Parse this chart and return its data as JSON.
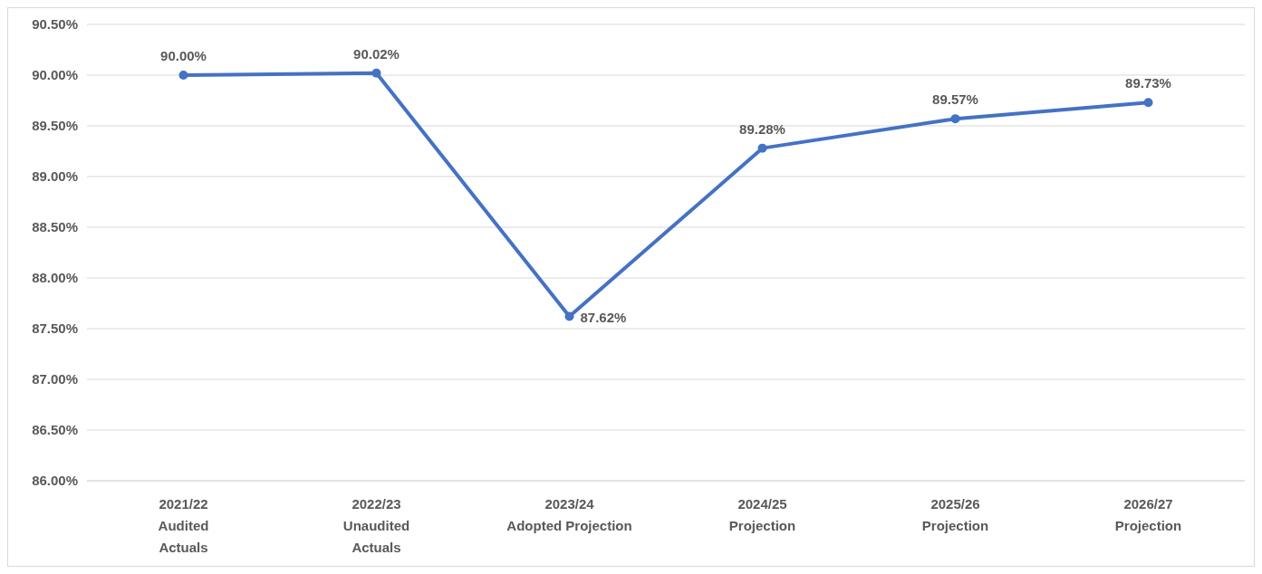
{
  "chart_data": {
    "type": "line",
    "categories": [
      "2021/22\nAudited\nActuals",
      "2022/23\nUnaudited\nActuals",
      "2023/24\nAdopted Projection",
      "2024/25\nProjection",
      "2025/26\nProjection",
      "2026/27\nProjection"
    ],
    "series": [
      {
        "color": "#4472c4",
        "values": [
          90.0,
          90.02,
          87.62,
          89.28,
          89.57,
          89.73
        ],
        "value_labels": [
          "90.00%",
          "90.02%",
          "87.62%",
          "89.28%",
          "89.57%",
          "89.73%"
        ]
      }
    ],
    "ylim": [
      86,
      90.5
    ],
    "yticks": [
      {
        "value": 86,
        "label": "86.00%"
      },
      {
        "value": 86.5,
        "label": "86.50%"
      },
      {
        "value": 87,
        "label": "87.00%"
      },
      {
        "value": 87.5,
        "label": "87.50%"
      },
      {
        "value": 88,
        "label": "88.00%"
      },
      {
        "value": 88.5,
        "label": "88.50%"
      },
      {
        "value": 89,
        "label": "89.00%"
      },
      {
        "value": 89.5,
        "label": "89.50%"
      },
      {
        "value": 90,
        "label": "90.00%"
      },
      {
        "value": 90.5,
        "label": "90.50%"
      }
    ],
    "grid": "y",
    "marker": "circle",
    "line_style": "solid"
  }
}
